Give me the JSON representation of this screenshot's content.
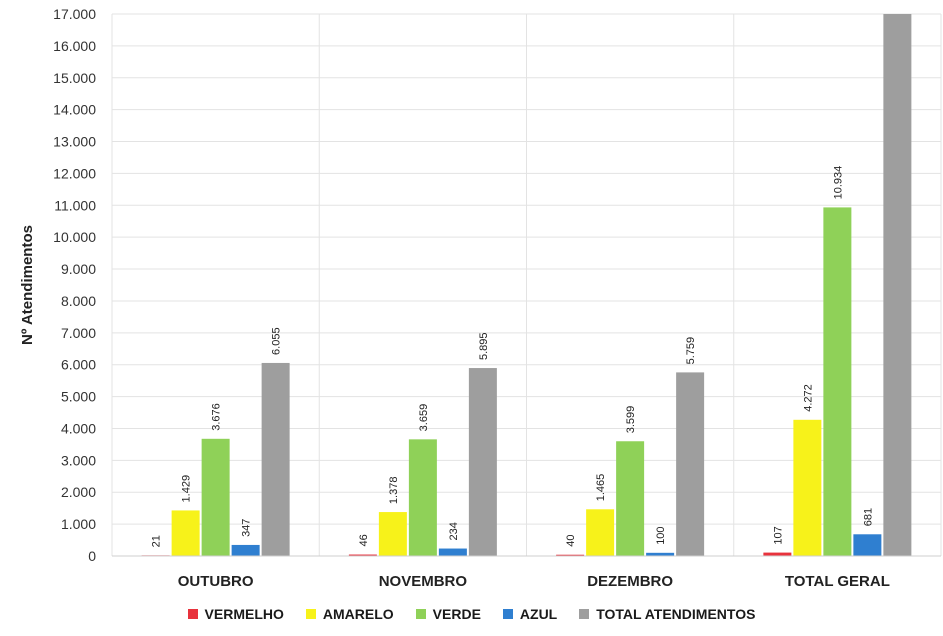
{
  "chart_data": {
    "type": "bar",
    "title": "",
    "xlabel": "",
    "ylabel": "Nº Atendimentos",
    "ylim": [
      0,
      17000
    ],
    "ytick_step": 1000,
    "y_tick_labels": [
      "0",
      "1.000",
      "2.000",
      "3.000",
      "4.000",
      "5.000",
      "6.000",
      "7.000",
      "8.000",
      "9.000",
      "10.000",
      "11.000",
      "12.000",
      "13.000",
      "14.000",
      "15.000",
      "16.000",
      "17.000"
    ],
    "grid": true,
    "legend_position": "bottom",
    "categories": [
      "OUTUBRO",
      "NOVEMBRO",
      "DEZEMBRO",
      "TOTAL GERAL"
    ],
    "series": [
      {
        "name": "VERMELHO",
        "color": "#e8323c",
        "values": [
          21,
          46,
          40,
          107
        ],
        "labels": [
          "21",
          "46",
          "40",
          "107"
        ]
      },
      {
        "name": "AMARELO",
        "color": "#f7f21a",
        "values": [
          1429,
          1378,
          1465,
          4272
        ],
        "labels": [
          "1.429",
          "1.378",
          "1.465",
          "4.272"
        ]
      },
      {
        "name": "VERDE",
        "color": "#8fd158",
        "values": [
          3676,
          3659,
          3599,
          10934
        ],
        "labels": [
          "3.676",
          "3.659",
          "3.599",
          "10.934"
        ]
      },
      {
        "name": "AZUL",
        "color": "#2f7fd0",
        "values": [
          347,
          234,
          100,
          681
        ],
        "labels": [
          "347",
          "234",
          "100",
          "681"
        ]
      },
      {
        "name": "TOTAL ATENDIMENTOS",
        "color": "#9e9e9e",
        "values": [
          6055,
          5895,
          5759,
          17709
        ],
        "labels": [
          "6.055",
          "5.895",
          "5.759",
          ""
        ]
      }
    ]
  }
}
